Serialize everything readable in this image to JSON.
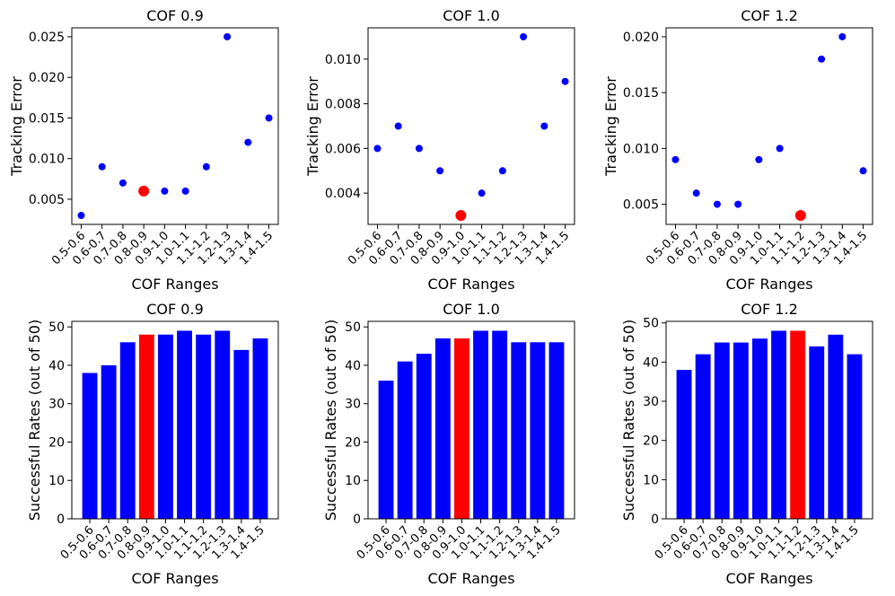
{
  "chart_data": [
    {
      "type": "scatter",
      "title": "COF 0.9",
      "xlabel": "COF Ranges",
      "ylabel": "Tracking Error",
      "categories": [
        "0.5-0.6",
        "0.6-0.7",
        "0.7-0.8",
        "0.8-0.9",
        "0.9-1.0",
        "1.0-1.1",
        "1.1-1.2",
        "1.2-1.3",
        "1.3-1.4",
        "1.4-1.5"
      ],
      "values": [
        0.003,
        0.009,
        0.007,
        0.006,
        0.006,
        0.006,
        0.009,
        0.025,
        0.012,
        0.015
      ],
      "highlight_index": 3,
      "ylim": [
        0.0019,
        0.0261
      ],
      "yticks": [
        0.005,
        0.01,
        0.015,
        0.02,
        0.025
      ],
      "ytick_labels": [
        "0.005",
        "0.010",
        "0.015",
        "0.020",
        "0.025"
      ]
    },
    {
      "type": "scatter",
      "title": "COF 1.0",
      "xlabel": "COF Ranges",
      "ylabel": "Tracking Error",
      "categories": [
        "0.5-0.6",
        "0.6-0.7",
        "0.7-0.8",
        "0.8-0.9",
        "0.9-1.0",
        "1.0-1.1",
        "1.1-1.2",
        "1.2-1.3",
        "1.3-1.4",
        "1.4-1.5"
      ],
      "values": [
        0.006,
        0.007,
        0.006,
        0.005,
        0.003,
        0.004,
        0.005,
        0.011,
        0.007,
        0.009
      ],
      "highlight_index": 4,
      "ylim": [
        0.0026,
        0.0114
      ],
      "yticks": [
        0.004,
        0.006,
        0.008,
        0.01
      ],
      "ytick_labels": [
        "0.004",
        "0.006",
        "0.008",
        "0.010"
      ]
    },
    {
      "type": "scatter",
      "title": "COF 1.2",
      "xlabel": "COF Ranges",
      "ylabel": "Tracking Error",
      "categories": [
        "0.5-0.6",
        "0.6-0.7",
        "0.7-0.8",
        "0.8-0.9",
        "0.9-1.0",
        "1.0-1.1",
        "1.1-1.2",
        "1.2-1.3",
        "1.3-1.4",
        "1.4-1.5"
      ],
      "values": [
        0.009,
        0.006,
        0.005,
        0.005,
        0.009,
        0.01,
        0.004,
        0.018,
        0.02,
        0.008
      ],
      "highlight_index": 6,
      "ylim": [
        0.0032,
        0.0208
      ],
      "yticks": [
        0.005,
        0.01,
        0.015,
        0.02
      ],
      "ytick_labels": [
        "0.005",
        "0.010",
        "0.015",
        "0.020"
      ]
    },
    {
      "type": "bar",
      "title": "COF 0.9",
      "xlabel": "COF Ranges",
      "ylabel": "Successful Rates (out of 50)",
      "categories": [
        "0.5-0.6",
        "0.6-0.7",
        "0.7-0.8",
        "0.8-0.9",
        "0.9-1.0",
        "1.0-1.1",
        "1.1-1.2",
        "1.2-1.3",
        "1.3-1.4",
        "1.4-1.5"
      ],
      "values": [
        38,
        40,
        46,
        48,
        48,
        49,
        48,
        49,
        44,
        47
      ],
      "highlight_index": 3,
      "ylim": [
        0,
        51.45
      ],
      "yticks": [
        0,
        10,
        20,
        30,
        40,
        50
      ],
      "ytick_labels": [
        "0",
        "10",
        "20",
        "30",
        "40",
        "50"
      ]
    },
    {
      "type": "bar",
      "title": "COF 1.0",
      "xlabel": "COF Ranges",
      "ylabel": "Successful Rates (out of 50)",
      "categories": [
        "0.5-0.6",
        "0.6-0.7",
        "0.7-0.8",
        "0.8-0.9",
        "0.9-1.0",
        "1.0-1.1",
        "1.1-1.2",
        "1.2-1.3",
        "1.3-1.4",
        "1.4-1.5"
      ],
      "values": [
        36,
        41,
        43,
        47,
        47,
        49,
        49,
        46,
        46,
        46
      ],
      "highlight_index": 4,
      "ylim": [
        0,
        51.45
      ],
      "yticks": [
        0,
        10,
        20,
        30,
        40,
        50
      ],
      "ytick_labels": [
        "0",
        "10",
        "20",
        "30",
        "40",
        "50"
      ]
    },
    {
      "type": "bar",
      "title": "COF 1.2",
      "xlabel": "COF Ranges",
      "ylabel": "Successful Rates (out of 50)",
      "categories": [
        "0.5-0.6",
        "0.6-0.7",
        "0.7-0.8",
        "0.8-0.9",
        "0.9-1.0",
        "1.0-1.1",
        "1.1-1.2",
        "1.2-1.3",
        "1.3-1.4",
        "1.4-1.5"
      ],
      "values": [
        38,
        42,
        45,
        45,
        46,
        48,
        48,
        44,
        47,
        42
      ],
      "highlight_index": 6,
      "ylim": [
        0,
        50.4
      ],
      "yticks": [
        0,
        10,
        20,
        30,
        40,
        50
      ],
      "ytick_labels": [
        "0",
        "10",
        "20",
        "30",
        "40",
        "50"
      ]
    }
  ],
  "colors": {
    "normal": "#0000ff",
    "highlight": "#ff0000"
  }
}
